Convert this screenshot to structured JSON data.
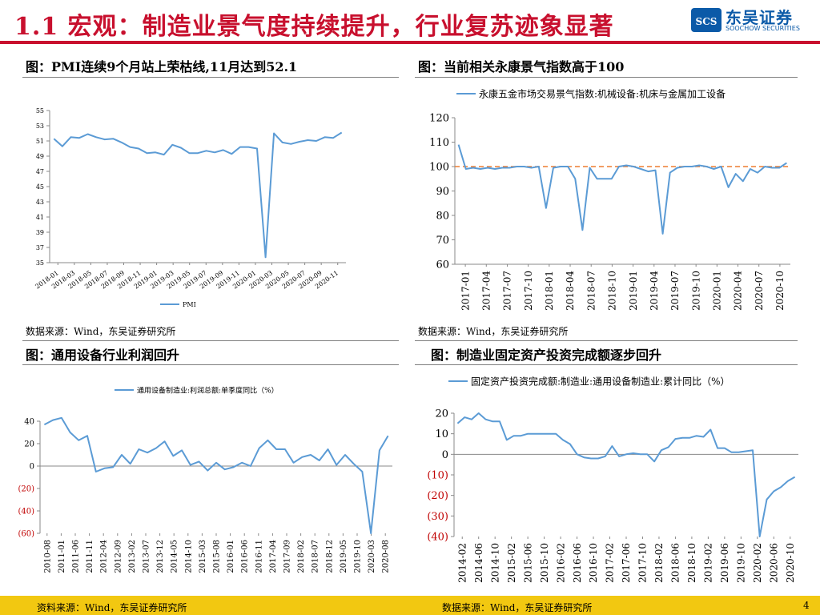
{
  "header": {
    "title": "1.1 宏观：制造业景气度持续提升，行业复苏迹象显著",
    "logo_cn": "东吴证券",
    "logo_en": "SOOCHOW SECURITIES",
    "logo_mark": "SCS"
  },
  "colors": {
    "line": "#5b9bd5",
    "title": "#c8102e",
    "negative": "#c00000",
    "footer": "#f2c811",
    "refline": "#ed7d31"
  },
  "panels": {
    "p1": {
      "title": "图：PMI连续9个月站上荣枯线,11月达到52.1",
      "source": "数据来源：Wind，东吴证券研究所"
    },
    "p2": {
      "title": "图：当前相关永康景气指数高于100",
      "source": "数据来源：Wind，东吴证券研究所"
    },
    "p3": {
      "title": "图：通用设备行业利润回升"
    },
    "p4": {
      "title": "图：制造业固定资产投资完成额逐步回升"
    }
  },
  "footer": {
    "left_source": "资料来源：Wind，东吴证券研究所",
    "right_source": "数据来源：Wind，东吴证券研究所",
    "page": "4"
  },
  "chart_data": [
    {
      "id": "pmi",
      "type": "line",
      "ylim": [
        35,
        55
      ],
      "yticks": [
        "35",
        "37",
        "39",
        "41",
        "43",
        "45",
        "47",
        "49",
        "51",
        "53",
        "55"
      ],
      "xtick_labels": [
        "2018-01",
        "2018-03",
        "2018-05",
        "2018-07",
        "2018-09",
        "2018-11",
        "2019-01",
        "2019-03",
        "2019-05",
        "2019-07",
        "2019-09",
        "2019-11",
        "2020-01",
        "2020-03",
        "2020-05",
        "2020-07",
        "2020-09",
        "2020-11"
      ],
      "series": [
        {
          "name": "PMI",
          "values": [
            51.3,
            50.3,
            51.5,
            51.4,
            51.9,
            51.5,
            51.2,
            51.3,
            50.8,
            50.2,
            50.0,
            49.4,
            49.5,
            49.2,
            50.5,
            50.1,
            49.4,
            49.4,
            49.7,
            49.5,
            49.8,
            49.3,
            50.2,
            50.2,
            50.0,
            35.7,
            52.0,
            50.8,
            50.6,
            50.9,
            51.1,
            51.0,
            51.5,
            51.4,
            52.1
          ]
        }
      ],
      "legend": "bottom"
    },
    {
      "id": "yongkang",
      "type": "line",
      "ylim": [
        60,
        120
      ],
      "yticks": [
        "60",
        "70",
        "80",
        "90",
        "100",
        "110",
        "120"
      ],
      "xtick_labels": [
        "2017-01",
        "2017-04",
        "2017-07",
        "2017-10",
        "2018-01",
        "2018-04",
        "2018-07",
        "2018-10",
        "2019-01",
        "2019-04",
        "2019-07",
        "2019-10",
        "2020-01",
        "2020-04",
        "2020-07",
        "2020-10"
      ],
      "reference_line": 100,
      "series": [
        {
          "name": "永康五金市场交易景气指数:机械设备:机床与金属加工设备",
          "values": [
            109,
            99,
            99.5,
            99,
            99.5,
            99,
            99.5,
            99.5,
            100,
            100,
            99.5,
            100,
            83,
            99.5,
            100,
            100,
            95,
            74,
            99.5,
            95,
            95,
            95,
            100,
            100.5,
            100,
            99,
            98,
            98.5,
            72.5,
            97.5,
            99.5,
            100,
            100,
            100.5,
            100,
            99,
            100,
            91.5,
            97,
            94,
            99,
            97.5,
            100,
            99.5,
            99.5,
            101.5
          ]
        }
      ],
      "legend": "top"
    },
    {
      "id": "profit",
      "type": "line",
      "ylim": [
        -60,
        40
      ],
      "yticks": [
        "(60)",
        "(40)",
        "(20)",
        "0",
        "20",
        "40"
      ],
      "xtick_labels": [
        "2010-08",
        "2011-01",
        "2011-06",
        "2011-11",
        "2012-04",
        "2012-09",
        "2013-02",
        "2013-07",
        "2013-12",
        "2014-05",
        "2014-10",
        "2015-03",
        "2015-08",
        "2016-01",
        "2016-06",
        "2016-11",
        "2017-04",
        "2017-09",
        "2018-02",
        "2018-07",
        "2018-12",
        "2019-05",
        "2019-10",
        "2020-03",
        "2020-08"
      ],
      "series": [
        {
          "name": "通用设备制造业:利润总额:单季度同比（%）",
          "values": [
            37,
            41,
            43,
            30,
            23,
            27,
            -5,
            -2,
            -1,
            10,
            2,
            15,
            12,
            16,
            22,
            9,
            14,
            1,
            4,
            -4,
            3,
            -3,
            -1,
            3,
            0,
            16,
            23,
            15,
            15,
            3,
            8,
            10,
            5,
            15,
            1,
            10,
            2,
            -5,
            -60,
            14,
            27
          ]
        }
      ],
      "legend": "top"
    },
    {
      "id": "fai",
      "type": "line",
      "ylim": [
        -40,
        20
      ],
      "yticks": [
        "(40)",
        "(30)",
        "(20)",
        "(10)",
        "0",
        "10",
        "20"
      ],
      "xtick_labels": [
        "2014-02",
        "2014-06",
        "2014-10",
        "2015-02",
        "2015-06",
        "2015-10",
        "2016-02",
        "2016-06",
        "2016-10",
        "2017-02",
        "2017-06",
        "2017-10",
        "2018-02",
        "2018-06",
        "2018-10",
        "2019-02",
        "2019-06",
        "2019-10",
        "2020-02",
        "2020-06",
        "2020-10"
      ],
      "series": [
        {
          "name": "固定资产投资完成额:制造业:通用设备制造业:累计同比（%）",
          "values": [
            15,
            18,
            17,
            20,
            17,
            16,
            16,
            7,
            9,
            9,
            10,
            10,
            10,
            10,
            10,
            7,
            5,
            0,
            -1.5,
            -2,
            -2,
            -1,
            4,
            -1,
            0,
            0.5,
            0,
            0,
            -3.5,
            2,
            3.5,
            7.5,
            8,
            8,
            9,
            8.5,
            12,
            3,
            3,
            1,
            1,
            1.5,
            2,
            -40,
            -22,
            -18,
            -16,
            -13,
            -11
          ]
        }
      ],
      "legend": "top"
    }
  ]
}
